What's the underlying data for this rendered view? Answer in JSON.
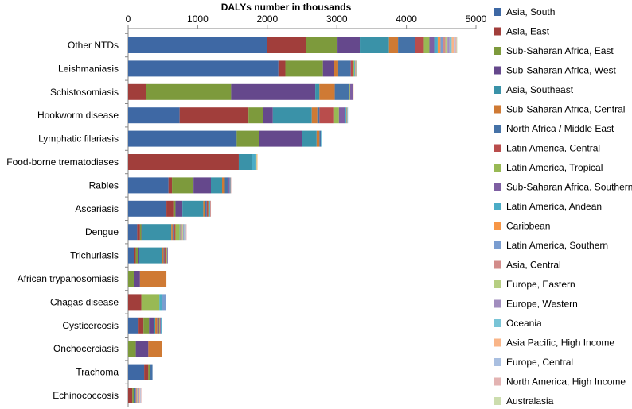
{
  "chart_data": {
    "type": "bar",
    "orientation": "horizontal",
    "stacked": true,
    "title": "",
    "xlabel": "DALYs  number in thousands",
    "ylabel": "",
    "xlim": [
      0,
      5000
    ],
    "x_ticks": [
      "0",
      "1000",
      "2000",
      "3000",
      "4000",
      "5000"
    ],
    "x_axis_position": "top",
    "grid": false,
    "legend_position": "right",
    "categories": [
      "Other NTDs",
      "Leishmaniasis",
      "Schistosomiasis",
      "Hookworm disease",
      "Lymphatic filariasis",
      "Food-borne trematodiases",
      "Rabies",
      "Ascariasis",
      "Dengue",
      "Trichuriasis",
      "African trypanosomiasis",
      "Chagas disease",
      "Cysticercosis",
      "Onchocerciasis",
      "Trachoma",
      "Echinococcosis"
    ],
    "series": [
      {
        "name": "Asia, South",
        "color": "#3E68A4",
        "values": [
          2000,
          2160,
          0,
          740,
          1560,
          0,
          580,
          550,
          130,
          80,
          0,
          0,
          150,
          0,
          230,
          0
        ]
      },
      {
        "name": "Asia, East",
        "color": "#A13E3B",
        "values": [
          560,
          100,
          260,
          990,
          0,
          1590,
          50,
          100,
          40,
          30,
          0,
          190,
          70,
          0,
          60,
          60
        ]
      },
      {
        "name": "Sub-Saharan Africa, East",
        "color": "#7D9A3C",
        "values": [
          450,
          540,
          1220,
          210,
          320,
          0,
          310,
          30,
          20,
          30,
          80,
          0,
          80,
          110,
          30,
          20
        ]
      },
      {
        "name": "Sub-Saharan Africa, West",
        "color": "#65488C",
        "values": [
          320,
          160,
          1210,
          140,
          620,
          0,
          250,
          100,
          10,
          20,
          90,
          0,
          70,
          180,
          0,
          0
        ]
      },
      {
        "name": "Asia, Southeast",
        "color": "#3A92A8",
        "values": [
          420,
          0,
          60,
          560,
          210,
          190,
          160,
          300,
          420,
          330,
          0,
          0,
          20,
          0,
          0,
          0
        ]
      },
      {
        "name": "Sub-Saharan Africa, Central",
        "color": "#CF7A34",
        "values": [
          130,
          60,
          220,
          80,
          40,
          0,
          40,
          30,
          20,
          20,
          380,
          0,
          30,
          200,
          0,
          0
        ]
      },
      {
        "name": "North Africa / Middle East",
        "color": "#4572A7",
        "values": [
          240,
          180,
          200,
          30,
          20,
          0,
          40,
          20,
          10,
          10,
          0,
          0,
          20,
          0,
          30,
          30
        ]
      },
      {
        "name": "Latin America, Central",
        "color": "#B94D4C",
        "values": [
          130,
          30,
          0,
          200,
          0,
          0,
          10,
          20,
          30,
          30,
          0,
          0,
          10,
          0,
          0,
          0
        ]
      },
      {
        "name": "Latin America, Tropical",
        "color": "#98B954",
        "values": [
          80,
          20,
          20,
          80,
          0,
          0,
          0,
          10,
          60,
          10,
          0,
          260,
          10,
          0,
          0,
          0
        ]
      },
      {
        "name": "Sub-Saharan Africa, Southern",
        "color": "#7E5FA2",
        "values": [
          70,
          0,
          40,
          90,
          0,
          0,
          20,
          10,
          0,
          10,
          0,
          0,
          10,
          0,
          0,
          0
        ]
      },
      {
        "name": "Latin America, Andean",
        "color": "#4BACC6",
        "values": [
          50,
          10,
          0,
          20,
          0,
          50,
          10,
          10,
          10,
          0,
          0,
          40,
          10,
          0,
          0,
          0
        ]
      },
      {
        "name": "Caribbean",
        "color": "#F79646",
        "values": [
          40,
          0,
          10,
          10,
          0,
          0,
          0,
          0,
          10,
          0,
          0,
          0,
          0,
          0,
          0,
          0
        ]
      },
      {
        "name": "Latin America, Southern",
        "color": "#7A9DD0",
        "values": [
          30,
          0,
          0,
          0,
          0,
          0,
          0,
          0,
          10,
          0,
          0,
          50,
          0,
          0,
          0,
          0
        ]
      },
      {
        "name": "Asia, Central",
        "color": "#D28C8A",
        "values": [
          40,
          10,
          0,
          0,
          0,
          10,
          10,
          10,
          10,
          0,
          0,
          0,
          0,
          0,
          0,
          20
        ]
      },
      {
        "name": "Europe, Eastern",
        "color": "#B6CE82",
        "values": [
          30,
          10,
          0,
          0,
          0,
          10,
          0,
          0,
          10,
          0,
          0,
          0,
          0,
          0,
          0,
          20
        ]
      },
      {
        "name": "Europe, Western",
        "color": "#A18DBE",
        "values": [
          30,
          10,
          0,
          0,
          0,
          0,
          0,
          0,
          10,
          0,
          0,
          0,
          0,
          0,
          0,
          10
        ]
      },
      {
        "name": "Oceania",
        "color": "#79C4D6",
        "values": [
          30,
          0,
          0,
          10,
          10,
          0,
          0,
          0,
          10,
          0,
          0,
          0,
          0,
          0,
          0,
          0
        ]
      },
      {
        "name": "Asia Pacific, High Income",
        "color": "#F9B588",
        "values": [
          30,
          0,
          0,
          0,
          0,
          10,
          0,
          0,
          10,
          0,
          0,
          0,
          0,
          0,
          0,
          10
        ]
      },
      {
        "name": "Europe, Central",
        "color": "#A9BFE0",
        "values": [
          20,
          0,
          0,
          0,
          0,
          0,
          0,
          0,
          10,
          0,
          0,
          0,
          0,
          0,
          0,
          10
        ]
      },
      {
        "name": "North America, High Income",
        "color": "#E3B3B2",
        "values": [
          20,
          0,
          0,
          0,
          0,
          0,
          0,
          0,
          10,
          0,
          0,
          0,
          0,
          0,
          0,
          10
        ]
      },
      {
        "name": "Australasia",
        "color": "#CCDDAE",
        "values": [
          10,
          0,
          0,
          0,
          0,
          0,
          0,
          0,
          0,
          0,
          0,
          0,
          0,
          0,
          0,
          0
        ]
      }
    ]
  }
}
